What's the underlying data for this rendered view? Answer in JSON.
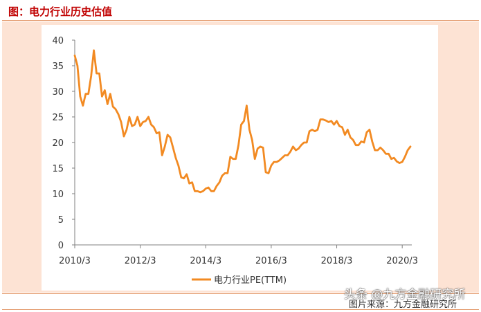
{
  "header": {
    "title": "图：电力行业历史估值"
  },
  "footer": {
    "source": "图片来源：九方金融研究所",
    "watermark": "头条 @九方金融研究所"
  },
  "colors": {
    "line": "#f28a22",
    "accent": "#c00000",
    "panel": "#fde3d4"
  },
  "chart_data": {
    "type": "line",
    "title": "",
    "xlabel": "",
    "ylabel": "",
    "ylim": [
      0,
      40
    ],
    "yticks": [
      0,
      5,
      10,
      15,
      20,
      25,
      30,
      35,
      40
    ],
    "xticks": [
      "2010/3",
      "2012/3",
      "2014/3",
      "2016/3",
      "2018/3",
      "2020/3"
    ],
    "legend": "bottom",
    "grid": false,
    "series": [
      {
        "name": "电力行业PE(TTM)",
        "x": [
          "2010-03",
          "2010-04",
          "2010-05",
          "2010-06",
          "2010-07",
          "2010-08",
          "2010-09",
          "2010-10",
          "2010-11",
          "2010-12",
          "2011-01",
          "2011-02",
          "2011-03",
          "2011-04",
          "2011-05",
          "2011-06",
          "2011-07",
          "2011-08",
          "2011-09",
          "2011-10",
          "2011-11",
          "2011-12",
          "2012-01",
          "2012-02",
          "2012-03",
          "2012-04",
          "2012-05",
          "2012-06",
          "2012-07",
          "2012-08",
          "2012-09",
          "2012-10",
          "2012-11",
          "2012-12",
          "2013-01",
          "2013-02",
          "2013-03",
          "2013-04",
          "2013-05",
          "2013-06",
          "2013-07",
          "2013-08",
          "2013-09",
          "2013-10",
          "2013-11",
          "2013-12",
          "2014-01",
          "2014-02",
          "2014-03",
          "2014-04",
          "2014-05",
          "2014-06",
          "2014-07",
          "2014-08",
          "2014-09",
          "2014-10",
          "2014-11",
          "2014-12",
          "2015-01",
          "2015-02",
          "2015-03",
          "2015-04",
          "2015-05",
          "2015-06",
          "2015-07",
          "2015-08",
          "2015-09",
          "2015-10",
          "2015-11",
          "2015-12",
          "2016-01",
          "2016-02",
          "2016-03",
          "2016-04",
          "2016-05",
          "2016-06",
          "2016-07",
          "2016-08",
          "2016-09",
          "2016-10",
          "2016-11",
          "2016-12",
          "2017-01",
          "2017-02",
          "2017-03",
          "2017-04",
          "2017-05",
          "2017-06",
          "2017-07",
          "2017-08",
          "2017-09",
          "2017-10",
          "2017-11",
          "2017-12",
          "2018-01",
          "2018-02",
          "2018-03",
          "2018-04",
          "2018-05",
          "2018-06",
          "2018-07",
          "2018-08",
          "2018-09",
          "2018-10",
          "2018-11",
          "2018-12",
          "2019-01",
          "2019-02",
          "2019-03",
          "2019-04",
          "2019-05",
          "2019-06",
          "2019-07",
          "2019-08",
          "2019-09",
          "2019-10",
          "2019-11",
          "2019-12",
          "2020-01",
          "2020-02",
          "2020-03",
          "2020-04",
          "2020-05",
          "2020-06"
        ],
        "values": [
          37.0,
          35.0,
          29.0,
          27.2,
          29.5,
          29.5,
          33.0,
          38.0,
          33.5,
          33.5,
          29.0,
          30.2,
          27.5,
          29.5,
          27.0,
          26.5,
          25.5,
          24.0,
          21.2,
          22.5,
          25.0,
          23.2,
          23.5,
          25.0,
          23.2,
          24.0,
          24.2,
          25.0,
          23.5,
          23.0,
          21.8,
          22.0,
          17.5,
          19.2,
          21.5,
          21.0,
          19.0,
          17.0,
          15.5,
          13.2,
          13.0,
          13.8,
          12.0,
          12.2,
          10.5,
          10.5,
          10.3,
          10.5,
          11.0,
          11.2,
          10.5,
          10.5,
          11.5,
          12.2,
          13.5,
          14.0,
          14.0,
          17.2,
          16.8,
          16.8,
          19.5,
          23.5,
          24.2,
          27.2,
          22.5,
          20.5,
          16.8,
          18.8,
          19.2,
          19.0,
          14.2,
          14.0,
          15.5,
          16.2,
          16.2,
          16.5,
          17.0,
          17.5,
          17.5,
          18.2,
          19.2,
          18.5,
          18.8,
          19.5,
          20.0,
          20.0,
          22.2,
          22.5,
          22.2,
          22.5,
          24.5,
          24.5,
          24.3,
          24.0,
          24.2,
          23.5,
          24.2,
          23.2,
          23.0,
          21.5,
          22.5,
          21.0,
          20.5,
          19.5,
          19.5,
          20.2,
          20.0,
          22.0,
          22.5,
          20.2,
          18.5,
          18.5,
          19.0,
          18.5,
          17.8,
          17.8,
          16.8,
          17.0,
          16.3,
          16.0,
          16.2,
          17.2,
          18.5,
          19.2
        ]
      }
    ]
  }
}
